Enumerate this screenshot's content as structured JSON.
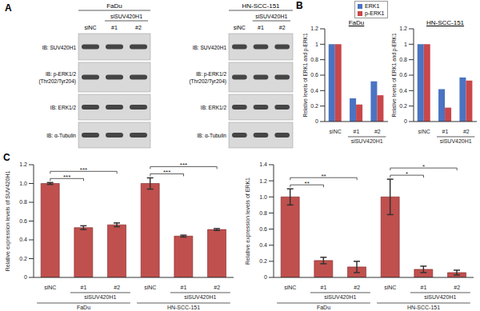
{
  "panel_a": {
    "label": "A",
    "blots": [
      {
        "cell_line": "FaDu",
        "group": "siSUV420H1",
        "lanes": [
          "siNC",
          "#1",
          "#2"
        ],
        "rows": [
          [
            "IB: SUV420H1"
          ],
          [
            "IB: p-ERK1/2",
            "(Thr202/Tyr204)"
          ],
          [
            "IB: ERK1/2"
          ],
          [
            "IB: α-Tubulin"
          ]
        ]
      },
      {
        "cell_line": "HN-SCC-151",
        "group": "siSUV420H1",
        "lanes": [
          "siNC",
          "#1",
          "#2"
        ],
        "rows": [
          [
            "IB: SUV420H1"
          ],
          [
            "IB: p-ERK1/2",
            "(Thr202/Tyr204)"
          ],
          [
            "IB: ERK1/2"
          ],
          [
            "IB: α-Tubulin"
          ]
        ]
      }
    ]
  },
  "chart_data": [
    {
      "type": "bar",
      "panel": "B",
      "title": "FaDu",
      "y_label": "Relative levels of ERK1 and p-ERK1",
      "categories": [
        "siNC",
        "#1",
        "#2"
      ],
      "category_groups": [
        {
          "label": "siSUV420H1",
          "span": [
            1,
            2
          ]
        }
      ],
      "series": [
        {
          "name": "ERK1",
          "color": "#4a73c2",
          "values": [
            1,
            0.3,
            0.52
          ]
        },
        {
          "name": "p-ERK1",
          "color": "#c8474a",
          "values": [
            1,
            0.22,
            0.34
          ]
        }
      ],
      "ylim": [
        0,
        1.2
      ],
      "yticks": [
        0,
        0.2,
        0.4,
        0.6,
        0.8,
        1,
        1.2
      ],
      "legend": "top-right"
    },
    {
      "type": "bar",
      "title": "HN-SCC-151",
      "y_label": "Relative levels of ERK1 and p-ERK1",
      "categories": [
        "siNC",
        "#1",
        "#2"
      ],
      "category_groups": [
        {
          "label": "siSUV420H1",
          "span": [
            1,
            2
          ]
        }
      ],
      "series": [
        {
          "name": "ERK1",
          "color": "#4a73c2",
          "values": [
            1,
            0.42,
            0.57
          ]
        },
        {
          "name": "p-ERK1",
          "color": "#c8474a",
          "values": [
            1,
            0.18,
            0.53
          ]
        }
      ],
      "ylim": [
        0,
        1.2
      ],
      "yticks": [
        0,
        0.2,
        0.4,
        0.6,
        0.8,
        1,
        1.2
      ]
    },
    {
      "type": "bar",
      "panel": "C",
      "y_label": "Relative expression levels of SUV420H1",
      "categories": [
        "siNC",
        "#1",
        "#2",
        "siNC",
        "#1",
        "#2"
      ],
      "category_groups": [
        {
          "label": "siSUV420H1",
          "span": [
            1,
            2
          ]
        },
        {
          "label": "FaDu",
          "span": [
            0,
            2
          ]
        },
        {
          "label": "siSUV420H1",
          "span": [
            4,
            5
          ]
        },
        {
          "label": "HN-SCC-151",
          "span": [
            3,
            5
          ]
        }
      ],
      "values": [
        1.0,
        0.53,
        0.56,
        1.0,
        0.44,
        0.51
      ],
      "errors": [
        0.01,
        0.02,
        0.02,
        0.06,
        0.01,
        0.01
      ],
      "color": "#c0504d",
      "ylim": [
        0,
        1.2
      ],
      "yticks": [
        0,
        0.2,
        0.4,
        0.6,
        0.8,
        {
          "value": 1,
          "label": "1.0"
        },
        1.2
      ],
      "significance": [
        {
          "span": [
            0,
            1
          ],
          "label": "***"
        },
        {
          "span": [
            0,
            2
          ],
          "label": "***"
        },
        {
          "span": [
            3,
            4
          ],
          "label": "***"
        },
        {
          "span": [
            3,
            5
          ],
          "label": "***"
        }
      ]
    },
    {
      "type": "bar",
      "y_label": "Relative expression levels of ERK1",
      "categories": [
        "siNC",
        "#1",
        "#2",
        "siNC",
        "#1",
        "#2"
      ],
      "category_groups": [
        {
          "label": "siSUV420H1",
          "span": [
            1,
            2
          ]
        },
        {
          "label": "FaDu",
          "span": [
            0,
            2
          ]
        },
        {
          "label": "siSUV420H1",
          "span": [
            4,
            5
          ]
        },
        {
          "label": "HN-SCC-151",
          "span": [
            3,
            5
          ]
        }
      ],
      "values": [
        1.0,
        0.21,
        0.13,
        1.0,
        0.1,
        0.06
      ],
      "errors": [
        0.1,
        0.04,
        0.07,
        0.22,
        0.04,
        0.03
      ],
      "color": "#c0504d",
      "ylim": [
        0,
        1.4
      ],
      "yticks": [
        0,
        0.2,
        0.4,
        0.6,
        0.8,
        {
          "value": 1,
          "label": "1.0"
        },
        1.2,
        1.4
      ],
      "significance": [
        {
          "span": [
            0,
            1
          ],
          "label": "**"
        },
        {
          "span": [
            0,
            2
          ],
          "label": "**"
        },
        {
          "span": [
            3,
            4
          ],
          "label": "*"
        },
        {
          "span": [
            3,
            5
          ],
          "label": "*"
        }
      ]
    }
  ]
}
